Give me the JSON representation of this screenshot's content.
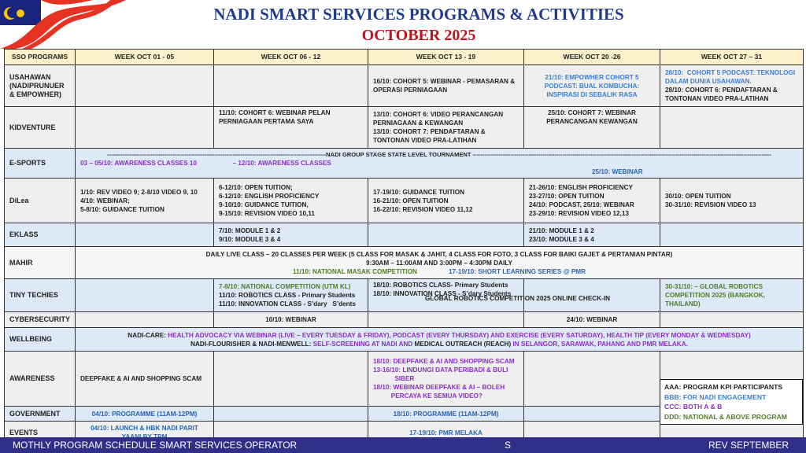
{
  "header": {
    "title": "NADI SMART SERVICES PROGRAMS & ACTIVITIES",
    "subtitle": "OCTOBER 2025"
  },
  "colors": {
    "black": "#222222",
    "blue": "#3d7fd6",
    "darkblue": "#2b64b0",
    "purple": "#8b2fc4",
    "green": "#4f7d2a",
    "footer": "#2f2f88",
    "header_fill": "#fdf1cc"
  },
  "columns": [
    "SSO PROGRAMS",
    "WEEK OCT 01 - 05",
    "WEEK OCT 06 - 12",
    "WEEK OCT 13 - 19",
    "WEEK OCT 20 -26",
    "WEEK OCT 27 – 31"
  ],
  "rows": [
    {
      "label": "USAHAWAN (NADIPRUNUER & EMPOWHER)",
      "style": "g",
      "h": 53,
      "cells": [
        {
          "lines": []
        },
        {
          "lines": []
        },
        {
          "lines": [
            {
              "t": "16/10: COHORT 5: WEBINAR - PEMASARAN & OPERASI PERNIAGAAN",
              "c": "black"
            }
          ]
        },
        {
          "align": "center",
          "lines": [
            {
              "t": "21/10: EMPOWHER COHORT 5 PODCAST: BUAL KOMBUCHA: INSPIRASI DI SEBALIK RASA",
              "c": "blue"
            }
          ]
        },
        {
          "lines": [
            {
              "t": "28/10:  COHORT 5 PODCAST: TEKNOLOGI DALAM DUNIA USAHAWAN.",
              "c": "blue"
            },
            {
              "t": "28/10: COHORT 6: PENDAFTARAN & TONTONAN VIDEO PRA-LATIHAN",
              "c": "black"
            }
          ]
        }
      ]
    },
    {
      "label": "KIDVENTURE",
      "style": "g",
      "h": 53,
      "cells": [
        {
          "lines": []
        },
        {
          "valign": "top",
          "lines": [
            {
              "t": "11/10: COHORT 6: WEBINAR PELAN PERNIAGAAN PERTAMA SAYA",
              "c": "black"
            }
          ]
        },
        {
          "lines": [
            {
              "t": "13/10: COHORT 6: VIDEO PERANCANGAN PERNIAGAAN & KEWANGAN",
              "c": "black"
            },
            {
              "t": "13/10: COHORT 7: PENDAFTARAN & TONTONAN VIDEO PRA-LATIHAN",
              "c": "black"
            }
          ]
        },
        {
          "valign": "top",
          "align": "center",
          "lines": [
            {
              "t": "25/10: COHORT 7: WEBINAR PERANCANGAN KEWANGAN",
              "c": "black"
            }
          ]
        },
        {
          "lines": []
        }
      ]
    },
    {
      "label": "E-SPORTS",
      "style": "b",
      "h": 30,
      "cells": [
        {
          "span": 5,
          "dash": "NADI GROUP STAGE STATE LEVEL TOURNAMENT",
          "lines": [
            {
              "t": "03 – 05/10: AWARENESS CLASSES 10                    – 12/10: AWARENESS CLASSES",
              "c": "purple"
            },
            {
              "t": "25/10: WEBINAR",
              "c": "darkblue",
              "indent": true
            }
          ]
        }
      ]
    },
    {
      "label": "DiLea",
      "style": "g",
      "h": 57,
      "cells": [
        {
          "lines": [
            {
              "t": "1/10: REV VIDEO 9; 2-8/10 VIDEO 9, 10",
              "c": "black"
            },
            {
              "t": "4/10: WEBINAR;",
              "c": "black"
            },
            {
              "t": "5-8/10: GUIDANCE TUITION",
              "c": "black"
            }
          ]
        },
        {
          "lines": [
            {
              "t": "6-12/10: OPEN TUITION;",
              "c": "black"
            },
            {
              "t": "6-12/10: ENGLISH PROFICIENCY",
              "c": "black"
            },
            {
              "t": "9-10/10: GUIDANCE TUITION,",
              "c": "black"
            },
            {
              "t": "9-15/10: REVISION VIDEO 10,11",
              "c": "black"
            }
          ]
        },
        {
          "lines": [
            {
              "t": "17-19/10: GUIDANCE TUITION",
              "c": "black"
            },
            {
              "t": "16-21/10: OPEN TUITION",
              "c": "black"
            },
            {
              "t": "16-22/10: REVISION VIDEO 11,12",
              "c": "black"
            }
          ]
        },
        {
          "lines": [
            {
              "t": "21-26/10: ENGLISH PROFICIENCY",
              "c": "black"
            },
            {
              "t": "23-27/10: OPEN TUITION",
              "c": "black"
            },
            {
              "t": "24/10: PODCAST, 25/10: WEBINAR",
              "c": "black"
            },
            {
              "t": "23-29/10: REVISION VIDEO 12,13",
              "c": "black"
            }
          ]
        },
        {
          "lines": [
            {
              "t": "30/10: OPEN TUITION",
              "c": "black"
            },
            {
              "t": "30-31/10: REVISION VIDEO 13",
              "c": "black"
            }
          ]
        }
      ]
    },
    {
      "label": "EKLASS",
      "style": "b",
      "h": 30,
      "cells": [
        {
          "lines": []
        },
        {
          "lines": [
            {
              "t": "7/10: MODULE 1 & 2",
              "c": "black"
            },
            {
              "t": "9/10: MODULE 3 & 4",
              "c": "black"
            }
          ]
        },
        {
          "lines": []
        },
        {
          "lines": [
            {
              "t": "21/10: MODULE 1 & 2",
              "c": "black"
            },
            {
              "t": "23/10: MODULE 3 & 4",
              "c": "black"
            }
          ]
        },
        {
          "lines": []
        }
      ]
    },
    {
      "label": "MAHIR",
      "style": "w",
      "h": 41,
      "cells": [
        {
          "span": 5,
          "align": "center",
          "lines": [
            {
              "t": "DAILY LIVE CLASS – 20 CLASSES PER WEEK (5 CLASS FOR MASAK & JAHIT, 4 CLASS FOR FOTO, 3 CLASS FOR BAIKI GAJET & PERTANIAN PINTAR)",
              "c": "black"
            },
            {
              "t": "9:30AM – 11:00AM AND 3:00PM – 4:30PM DAILY",
              "c": "black"
            },
            {
              "t": "11/10: NATIONAL MASAK COMPETITION",
              "c": "green",
              "inline": true
            },
            {
              "t": "17-19/10: SHORT LEARNING SERIES @ PMR",
              "c": "darkblue",
              "inline": true
            }
          ]
        }
      ]
    },
    {
      "label": "TINY TECHIES",
      "style": "b",
      "h": 42,
      "cells": [
        {
          "lines": []
        },
        {
          "lines": [
            {
              "t": "7-8/10: NATIONAL COMPETITION (UTM KL)",
              "c": "green"
            },
            {
              "t": "11/10: ROBOTICS CLASS - Primary Students",
              "c": "black"
            },
            {
              "t": "11/10: INNOVATION CLASS - S’dary   S’dents",
              "c": "black"
            }
          ]
        },
        {
          "valign": "top",
          "lines": [
            {
              "t": "18/10: ROBOTICS CLASS- Primary Students",
              "c": "black"
            },
            {
              "t": "18/10: INNOVATION CLASS - S’dary Students",
              "c": "black"
            }
          ]
        },
        {
          "lines": []
        },
        {
          "lines": [
            {
              "t": "30-31/10: – GLOBAL ROBOTICS COMPETITION 2025 (BANGKOK, THAILAND)",
              "c": "green"
            }
          ]
        }
      ],
      "overlay": "GLOBAL ROBOTICS COMPETITION 2025 ONLINE CHECK-IN"
    },
    {
      "label": "CYBERSECURITY",
      "style": "g",
      "h": 20,
      "cells": [
        {
          "lines": []
        },
        {
          "align": "center",
          "lines": [
            {
              "t": "10/10: WEBINAR",
              "c": "black"
            }
          ]
        },
        {
          "lines": []
        },
        {
          "align": "center",
          "lines": [
            {
              "t": "24/10: WEBINAR",
              "c": "black"
            }
          ]
        },
        {
          "lines": []
        }
      ]
    },
    {
      "label": "WELLBEING",
      "style": "b",
      "h": 30,
      "cells": [
        {
          "span": 5,
          "align": "center",
          "lines": [
            {
              "t": "NADI-CARE: ",
              "c": "black",
              "inline": true
            },
            {
              "t": "HEALTH ADVOCACY VIA WEBINAR (LIVE – EVERY TUESDAY & FRIDAY), PODCAST (EVERY THURSDAY) AND EXERCISE (EVERY SATURDAY), HEALTH TIP    (EVERY MONDAY & WEDNESDAY)",
              "c": "purple",
              "inline": true,
              "br": true
            },
            {
              "t": "NADI-FLOURISHER & NADI-MENWELL: ",
              "c": "black",
              "inline": true
            },
            {
              "t": "SELF-SCREENING AT NADI AND ",
              "c": "purple",
              "inline": true
            },
            {
              "t": "MEDICAL OUTREACH (REACH) ",
              "c": "black",
              "inline": true
            },
            {
              "t": "IN SELANGOR, SARAWAK,  PAHANG AND PMR MELAKA.",
              "c": "purple",
              "inline": true
            }
          ]
        }
      ]
    },
    {
      "label": "AWARENESS",
      "style": "g",
      "h": 70,
      "cells": [
        {
          "lines": [
            {
              "t": "DEEPFAKE & AI AND SHOPPING SCAM",
              "c": "black"
            }
          ]
        },
        {
          "lines": []
        },
        {
          "lines": [
            {
              "t": "18/10: DEEPFAKE & AI AND SHOPPING SCAM",
              "c": "purple"
            },
            {
              "t": "13-16/10: LINDUNGI DATA PERIBADI & BULI\n            SIBER",
              "c": "purple"
            },
            {
              "t": "18/10: WEBINAR DEEPFAKE & AI – BOLEH\n          PERCAYA KE SEMUA VIDEO?",
              "c": "purple"
            }
          ]
        },
        {
          "lines": []
        },
        {
          "lines": []
        }
      ]
    },
    {
      "label": "GOVERNMENT",
      "style": "b",
      "h": 19,
      "cells": [
        {
          "align": "center",
          "lines": [
            {
              "t": "04/10: PROGRAMME (11AM-12PM)",
              "c": "darkblue"
            }
          ]
        },
        {
          "lines": []
        },
        {
          "align": "center",
          "lines": [
            {
              "t": "18/10: PROGRAMME (11AM-12PM)",
              "c": "darkblue"
            }
          ]
        },
        {
          "lines": []
        },
        {
          "lines": []
        }
      ]
    },
    {
      "label": "EVENTS",
      "style": "g",
      "h": 29,
      "cells": [
        {
          "align": "center",
          "lines": [
            {
              "t": "04/10: LAUNCH & HBK NADI PARIT YAANI BY TPM",
              "c": "darkblue"
            }
          ]
        },
        {
          "lines": []
        },
        {
          "align": "center",
          "lines": [
            {
              "t": "17-19/10: PMR MELAKA",
              "c": "darkblue"
            }
          ]
        },
        {
          "lines": []
        },
        {
          "lines": []
        }
      ]
    }
  ],
  "legend": [
    {
      "t": "AAA: PROGRAM KPI PARTICIPANTS",
      "c": "black"
    },
    {
      "t": "BBB: FOR NADI ENGAGEMENT",
      "c": "blue"
    },
    {
      "t": "CCC: BOTH A & B",
      "c": "purple"
    },
    {
      "t": "DDD: NATIONAL & ABOVE PROGRAM",
      "c": "green"
    }
  ],
  "footer": {
    "left": "MOTHLY PROGRAM SCHEDULE SMART SERVICES OPERATOR",
    "center": "S",
    "right": "REV SEPTEMBER"
  }
}
